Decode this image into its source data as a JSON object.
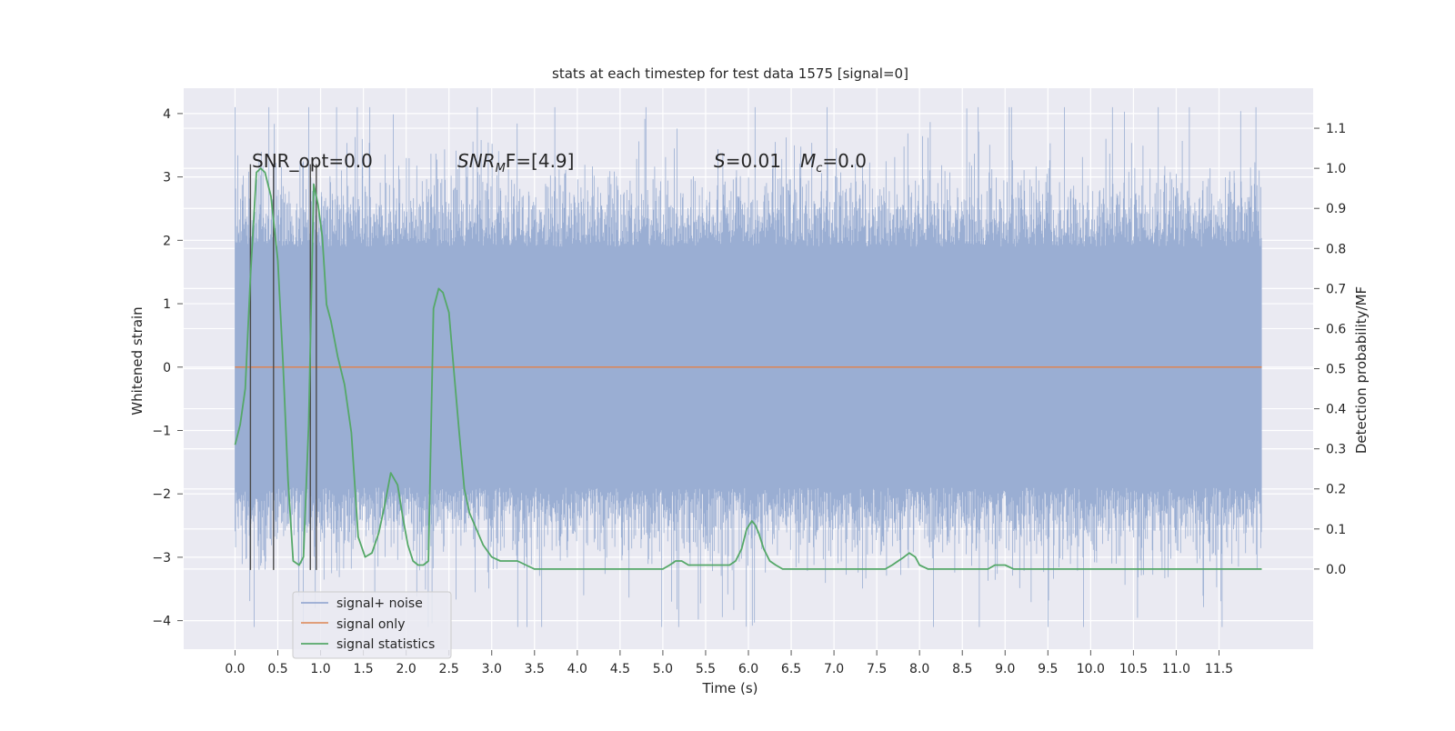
{
  "chart_data": {
    "type": "line",
    "title": "stats at each timestep for test data 1575 [signal=0]",
    "xlabel": "Time (s)",
    "ylabel": "Whitened strain",
    "y2label": "Detection probability/MF",
    "xlim": [
      -0.6,
      12.6
    ],
    "ylim": [
      -4.45,
      4.4
    ],
    "y2lim": [
      -0.2,
      1.2
    ],
    "grid": true,
    "legend_position": "lower-left",
    "x_ticks": [
      "0.0",
      "0.5",
      "1.0",
      "1.5",
      "2.0",
      "2.5",
      "3.0",
      "3.5",
      "4.0",
      "4.5",
      "5.0",
      "5.5",
      "6.0",
      "6.5",
      "7.0",
      "7.5",
      "8.0",
      "8.5",
      "9.0",
      "9.5",
      "10.0",
      "10.5",
      "11.0",
      "11.5"
    ],
    "y_ticks": [
      "4",
      "3",
      "2",
      "1",
      "0",
      "−1",
      "−2",
      "−3",
      "−4"
    ],
    "y2_ticks": [
      "1.1",
      "1.0",
      "0.9",
      "0.8",
      "0.7",
      "0.6",
      "0.5",
      "0.4",
      "0.3",
      "0.2",
      "0.1",
      "0.0"
    ],
    "annotations": {
      "snr_opt": "SNR_opt=0.0",
      "snr_mf_prefix": "SNR",
      "snr_mf_sub": "M",
      "snr_mf_rest": "F=[4.9]",
      "s_label": "S",
      "s_value": "=0.01",
      "mc_label": "M",
      "mc_sub": "c",
      "mc_value": "=0.0"
    },
    "series": [
      {
        "name": "signal+ noise",
        "color": "#9aaed3",
        "x_range": [
          0.0,
          12.0
        ],
        "core_range": [
          -1.9,
          1.9
        ],
        "peak_range": [
          -4.1,
          4.1
        ]
      },
      {
        "name": "signal only",
        "color": "#dd8452",
        "x": [
          0.0,
          12.0
        ],
        "y": [
          0.0,
          0.0
        ]
      },
      {
        "name": "signal statistics",
        "color": "#55a868",
        "x": [
          0.0,
          0.06,
          0.12,
          0.18,
          0.25,
          0.3,
          0.35,
          0.42,
          0.5,
          0.56,
          0.62,
          0.68,
          0.75,
          0.8,
          0.86,
          0.92,
          0.97,
          1.02,
          1.07,
          1.12,
          1.2,
          1.28,
          1.36,
          1.44,
          1.52,
          1.6,
          1.68,
          1.75,
          1.82,
          1.9,
          1.96,
          2.02,
          2.08,
          2.14,
          2.2,
          2.26,
          2.32,
          2.38,
          2.43,
          2.5,
          2.56,
          2.62,
          2.68,
          2.74,
          2.82,
          2.9,
          3.0,
          3.1,
          3.2,
          3.3,
          3.4,
          3.5,
          3.6,
          3.8,
          4.0,
          4.2,
          4.4,
          4.6,
          4.8,
          5.0,
          5.08,
          5.15,
          5.22,
          5.3,
          5.4,
          5.5,
          5.6,
          5.7,
          5.78,
          5.85,
          5.92,
          5.98,
          6.04,
          6.08,
          6.12,
          6.18,
          6.25,
          6.32,
          6.4,
          6.5,
          6.6,
          6.7,
          6.8,
          6.9,
          7.0,
          7.2,
          7.4,
          7.6,
          7.68,
          7.75,
          7.82,
          7.88,
          7.95,
          8.0,
          8.1,
          8.3,
          8.5,
          8.7,
          8.8,
          8.88,
          8.94,
          9.0,
          9.1,
          9.3,
          9.6,
          10.0,
          10.5,
          11.0,
          11.5,
          11.8,
          12.0
        ],
        "y": [
          0.31,
          0.36,
          0.45,
          0.73,
          0.99,
          1.0,
          0.99,
          0.93,
          0.77,
          0.52,
          0.22,
          0.02,
          0.01,
          0.03,
          0.36,
          0.96,
          0.91,
          0.83,
          0.66,
          0.62,
          0.53,
          0.46,
          0.34,
          0.08,
          0.03,
          0.04,
          0.09,
          0.16,
          0.24,
          0.21,
          0.13,
          0.06,
          0.02,
          0.01,
          0.01,
          0.02,
          0.65,
          0.7,
          0.69,
          0.64,
          0.49,
          0.34,
          0.2,
          0.14,
          0.1,
          0.06,
          0.03,
          0.02,
          0.02,
          0.02,
          0.01,
          0.0,
          0.0,
          0.0,
          0.0,
          0.0,
          0.0,
          0.0,
          0.0,
          0.0,
          0.01,
          0.02,
          0.02,
          0.01,
          0.01,
          0.01,
          0.01,
          0.01,
          0.01,
          0.02,
          0.05,
          0.1,
          0.12,
          0.11,
          0.09,
          0.05,
          0.02,
          0.01,
          0.0,
          0.0,
          0.0,
          0.0,
          0.0,
          0.0,
          0.0,
          0.0,
          0.0,
          0.0,
          0.01,
          0.02,
          0.03,
          0.04,
          0.03,
          0.01,
          0.0,
          0.0,
          0.0,
          0.0,
          0.0,
          0.01,
          0.01,
          0.01,
          0.0,
          0.0,
          0.0,
          0.0,
          0.0,
          0.0,
          0.0,
          0.0,
          0.0
        ]
      }
    ],
    "vertical_markers": {
      "color": "#4a4a4a",
      "x": [
        0.18,
        0.45,
        0.88,
        0.95
      ],
      "y_top": [
        3.2,
        3.2,
        3.2,
        3.2
      ],
      "y_bottom": [
        -3.2,
        -3.2,
        -3.2,
        -3.2
      ]
    }
  }
}
